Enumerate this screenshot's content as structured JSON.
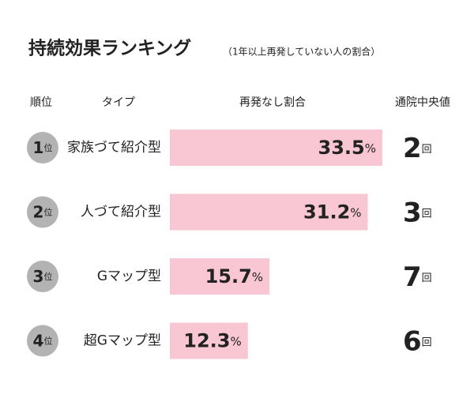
{
  "chart_data": {
    "type": "bar",
    "orientation": "horizontal",
    "title": "持続効果ランキング",
    "subtitle": "（1年以上再発していない人の割合）",
    "rank_header": "順位",
    "category_header": "タイプ",
    "ranks": [
      "1位",
      "2位",
      "3位",
      "4位"
    ],
    "categories": [
      "家族づて紹介型",
      "人づて紹介型",
      "Gマップ型",
      "超Gマップ型"
    ],
    "series": [
      {
        "name": "再発なし割合",
        "color": "#f9c6d3",
        "values": [
          33.5,
          31.2,
          15.7,
          12.3
        ],
        "value_labels": [
          "33.5%",
          "31.2%",
          "15.7%",
          "12.3%"
        ]
      },
      {
        "name": "通院中央値",
        "values": [
          2,
          3,
          7,
          6
        ],
        "value_labels": [
          "2回",
          "3回",
          "7回",
          "6回"
        ]
      }
    ]
  }
}
